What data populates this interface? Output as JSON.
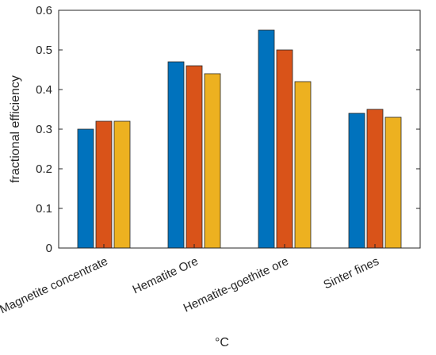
{
  "chart_data": {
    "type": "bar",
    "title": "",
    "xlabel": "°C",
    "ylabel": "fractional efficiency",
    "ylim": [
      0,
      0.6
    ],
    "yticks": [
      "0",
      "0.1",
      "0.2",
      "0.3",
      "0.4",
      "0.5",
      "0.6"
    ],
    "categories": [
      "Magnetite concentrate",
      "Hematite Ore",
      "Hematite-goethite ore",
      "Sinter fines"
    ],
    "series": [
      {
        "values": [
          0.3,
          0.47,
          0.55,
          0.34
        ],
        "color": "#0072BD"
      },
      {
        "values": [
          0.32,
          0.46,
          0.5,
          0.35
        ],
        "color": "#D95319"
      },
      {
        "values": [
          0.32,
          0.44,
          0.42,
          0.33
        ],
        "color": "#EDB120"
      }
    ],
    "grid": false,
    "legend": "none"
  }
}
